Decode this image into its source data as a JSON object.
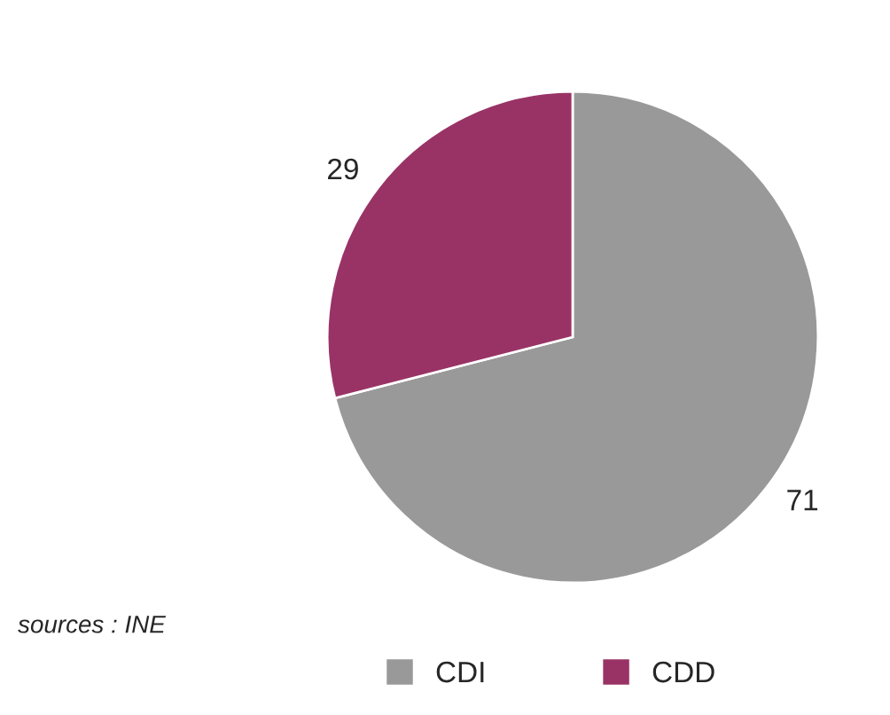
{
  "chart_data": {
    "type": "pie",
    "categories": [
      "CDI",
      "CDD"
    ],
    "values": [
      71,
      29
    ],
    "colors": [
      "#999999",
      "#993366"
    ],
    "data_labels": true,
    "legend": "bottom",
    "annotations": [
      "sources : INE"
    ]
  }
}
